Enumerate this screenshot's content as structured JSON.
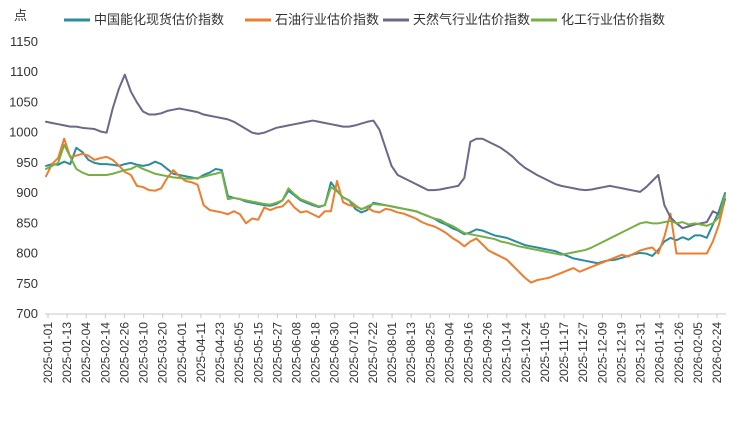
{
  "chart_data": {
    "type": "line",
    "y_unit_label": "点",
    "ylim": [
      700,
      1150
    ],
    "y_ticks": [
      700,
      750,
      800,
      850,
      900,
      950,
      1000,
      1050,
      1100,
      1150
    ],
    "x_tick_labels": [
      "2025-01-01",
      "2025-01-13",
      "2025-02-04",
      "2025-02-14",
      "2025-02-26",
      "2025-03-10",
      "2025-03-20",
      "2025-04-01",
      "2025-04-11",
      "2025-04-23",
      "2025-05-05",
      "2025-05-15",
      "2025-05-27",
      "2025-06-08",
      "2025-06-18",
      "2025-06-30",
      "2025-07-10",
      "2025-07-22",
      "2025-08-01",
      "2025-08-13",
      "2025-08-25",
      "2025-09-04",
      "2025-09-16",
      "2025-09-26",
      "2025-10-14",
      "2025-10-24",
      "2025-11-05",
      "2025-11-17",
      "2025-11-27",
      "2025-12-09",
      "2025-12-19",
      "2025-12-31",
      "2026-01-14",
      "2026-01-26",
      "2026-02-05",
      "2026-02-24"
    ],
    "grid": false,
    "legend_position": "top",
    "series": [
      {
        "name": "中国能化现货估价指数",
        "color": "#2b8c9e",
        "values": [
          945,
          948,
          947,
          952,
          948,
          975,
          968,
          955,
          950,
          948,
          948,
          947,
          945,
          948,
          950,
          947,
          945,
          947,
          952,
          948,
          940,
          932,
          930,
          928,
          926,
          924,
          930,
          934,
          940,
          938,
          895,
          892,
          890,
          886,
          884,
          882,
          880,
          879,
          882,
          888,
          904,
          896,
          888,
          884,
          880,
          877,
          880,
          918,
          904,
          893,
          888,
          874,
          868,
          872,
          884,
          882,
          880,
          878,
          876,
          874,
          872,
          870,
          866,
          862,
          858,
          852,
          848,
          842,
          838,
          832,
          835,
          840,
          838,
          834,
          830,
          828,
          826,
          822,
          818,
          814,
          812,
          810,
          808,
          806,
          804,
          800,
          796,
          792,
          790,
          788,
          786,
          784,
          787,
          789,
          790,
          793,
          796,
          799,
          801,
          800,
          796,
          806,
          820,
          826,
          822,
          827,
          823,
          830,
          830,
          826,
          848,
          870,
          900
        ]
      },
      {
        "name": "石油行业估价指数",
        "color": "#ee7d2f",
        "values": [
          928,
          948,
          958,
          990,
          960,
          962,
          965,
          962,
          955,
          958,
          960,
          955,
          946,
          935,
          930,
          912,
          910,
          905,
          904,
          908,
          925,
          938,
          928,
          920,
          918,
          914,
          880,
          872,
          870,
          868,
          865,
          870,
          865,
          850,
          858,
          856,
          876,
          872,
          876,
          878,
          888,
          876,
          868,
          870,
          865,
          860,
          870,
          870,
          920,
          885,
          880,
          878,
          874,
          876,
          870,
          868,
          874,
          872,
          868,
          866,
          862,
          858,
          852,
          848,
          845,
          840,
          834,
          826,
          820,
          812,
          820,
          825,
          815,
          805,
          800,
          795,
          790,
          780,
          770,
          760,
          752,
          756,
          758,
          760,
          764,
          768,
          772,
          776,
          770,
          774,
          778,
          782,
          786,
          790,
          794,
          798,
          795,
          800,
          805,
          808,
          810,
          800,
          828,
          866,
          800,
          800,
          800,
          800,
          800,
          800,
          820,
          848,
          890
        ]
      },
      {
        "name": "天然气行业估价指数",
        "color": "#6b6888",
        "values": [
          1018,
          1016,
          1014,
          1012,
          1010,
          1010,
          1008,
          1007,
          1006,
          1002,
          1000,
          1040,
          1072,
          1096,
          1068,
          1050,
          1035,
          1030,
          1030,
          1032,
          1036,
          1038,
          1040,
          1038,
          1036,
          1034,
          1030,
          1028,
          1026,
          1024,
          1022,
          1018,
          1012,
          1006,
          1000,
          998,
          1000,
          1004,
          1008,
          1010,
          1012,
          1014,
          1016,
          1018,
          1020,
          1018,
          1016,
          1014,
          1012,
          1010,
          1010,
          1012,
          1015,
          1018,
          1020,
          1005,
          975,
          945,
          930,
          925,
          920,
          915,
          910,
          905,
          905,
          906,
          908,
          910,
          912,
          925,
          985,
          990,
          990,
          985,
          980,
          975,
          968,
          960,
          950,
          942,
          936,
          930,
          925,
          920,
          915,
          912,
          910,
          908,
          906,
          905,
          906,
          908,
          910,
          912,
          910,
          908,
          906,
          904,
          902,
          910,
          920,
          930,
          880,
          860,
          850,
          842,
          845,
          848,
          850,
          852,
          870,
          865,
          890
        ]
      },
      {
        "name": "化工行业估价指数",
        "color": "#76b043",
        "values": [
          940,
          945,
          950,
          980,
          960,
          940,
          934,
          930,
          930,
          930,
          930,
          932,
          935,
          938,
          940,
          945,
          940,
          936,
          932,
          930,
          928,
          926,
          925,
          924,
          924,
          925,
          927,
          930,
          932,
          935,
          890,
          892,
          890,
          888,
          886,
          884,
          882,
          881,
          884,
          888,
          908,
          898,
          890,
          886,
          882,
          878,
          880,
          910,
          903,
          893,
          888,
          880,
          873,
          878,
          882,
          881,
          880,
          878,
          876,
          874,
          872,
          870,
          866,
          862,
          858,
          856,
          850,
          846,
          840,
          834,
          832,
          830,
          828,
          826,
          824,
          820,
          818,
          815,
          812,
          810,
          808,
          806,
          804,
          802,
          800,
          798,
          800,
          802,
          804,
          806,
          810,
          815,
          820,
          825,
          830,
          835,
          840,
          845,
          850,
          852,
          850,
          850,
          852,
          854,
          850,
          852,
          848,
          850,
          848,
          846,
          850,
          860,
          896
        ]
      }
    ]
  }
}
